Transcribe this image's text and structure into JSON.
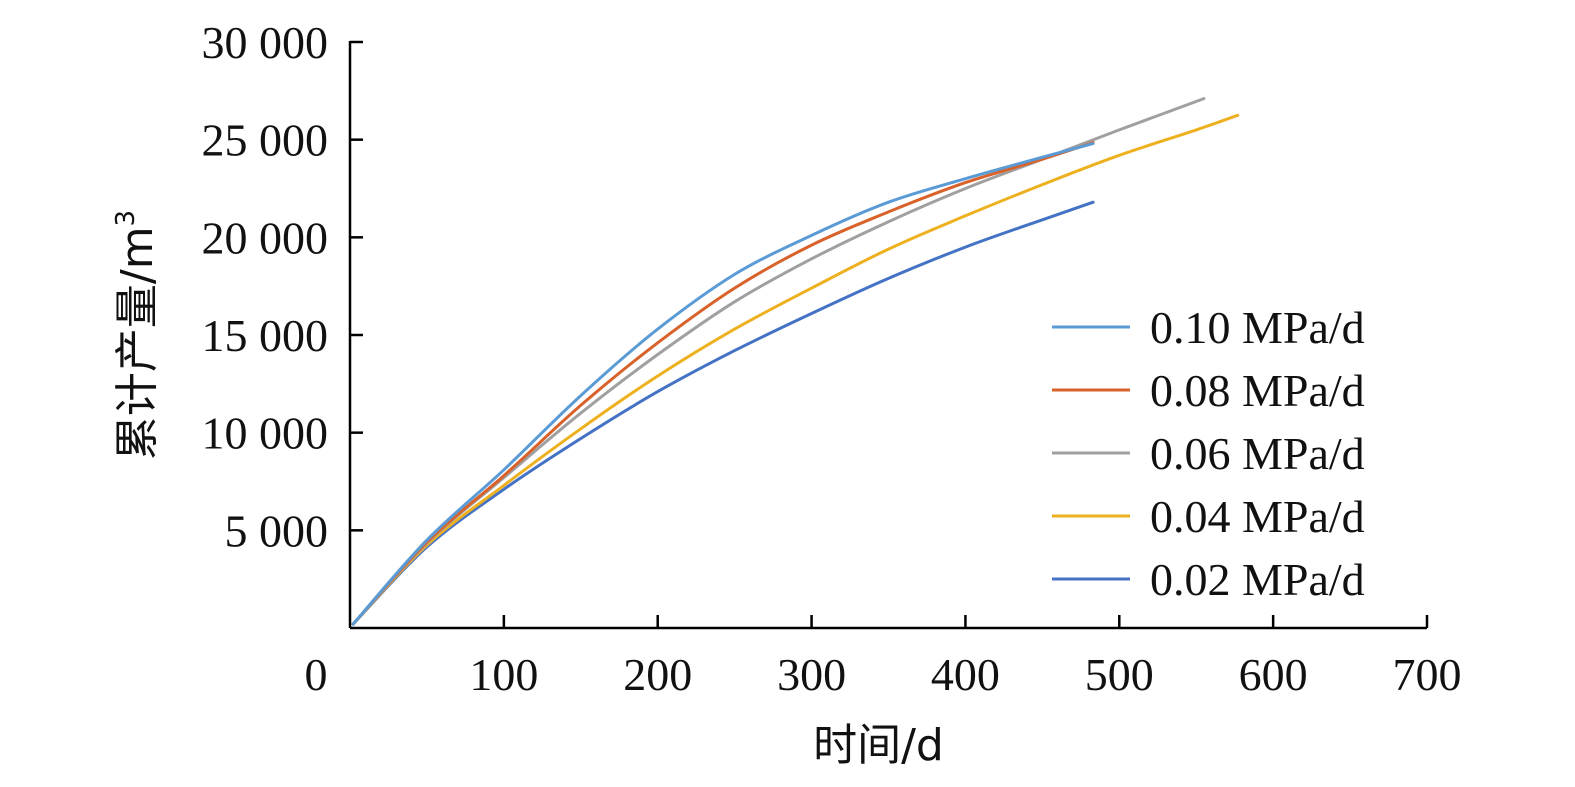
{
  "chart_data": {
    "type": "line",
    "xlabel": "时间/d",
    "ylabel": "累计产量/m",
    "ylabel_sup": "3",
    "xlim": [
      0,
      700
    ],
    "ylim": [
      0,
      30000
    ],
    "x_ticks": [
      0,
      100,
      200,
      300,
      400,
      500,
      600,
      700
    ],
    "x_tick_labels": [
      "0",
      "100",
      "200",
      "300",
      "400",
      "500",
      "600",
      "700"
    ],
    "y_ticks": [
      5000,
      10000,
      15000,
      20000,
      25000,
      30000
    ],
    "y_tick_labels": [
      "5 000",
      "10 000",
      "15 000",
      "20 000",
      "25 000",
      "30 000"
    ],
    "grid": false,
    "legend_position": "right",
    "series": [
      {
        "name": "0.10 MPa/d",
        "color": "#5B9BD5",
        "x": [
          2,
          50,
          100,
          150,
          200,
          250,
          300,
          350,
          400,
          450,
          483
        ],
        "y": [
          200,
          4500,
          8100,
          11900,
          15300,
          18100,
          20100,
          21800,
          23000,
          24100,
          24800
        ]
      },
      {
        "name": "0.08 MPa/d",
        "color": "#D9622B",
        "x": [
          2,
          50,
          100,
          150,
          200,
          250,
          300,
          350,
          400,
          450,
          483
        ],
        "y": [
          200,
          4400,
          7800,
          11400,
          14600,
          17400,
          19600,
          21300,
          22800,
          24000,
          24850
        ]
      },
      {
        "name": "0.06 MPa/d",
        "color": "#A0A0A0",
        "x": [
          2,
          50,
          100,
          150,
          200,
          250,
          300,
          350,
          400,
          450,
          500,
          555
        ],
        "y": [
          200,
          4350,
          7700,
          11000,
          14000,
          16700,
          18900,
          20800,
          22500,
          24000,
          25500,
          27100
        ]
      },
      {
        "name": "0.04 MPa/d",
        "color": "#EDB120",
        "x": [
          2,
          50,
          100,
          150,
          200,
          250,
          300,
          350,
          400,
          450,
          500,
          550,
          577
        ],
        "y": [
          200,
          4250,
          7300,
          10200,
          12900,
          15300,
          17400,
          19400,
          21100,
          22700,
          24200,
          25500,
          26250
        ]
      },
      {
        "name": "0.02 MPa/d",
        "color": "#4472C4",
        "x": [
          2,
          50,
          100,
          150,
          200,
          250,
          300,
          350,
          400,
          450,
          483
        ],
        "y": [
          200,
          4150,
          7100,
          9700,
          12100,
          14200,
          16100,
          17900,
          19500,
          20900,
          21800
        ]
      }
    ]
  }
}
